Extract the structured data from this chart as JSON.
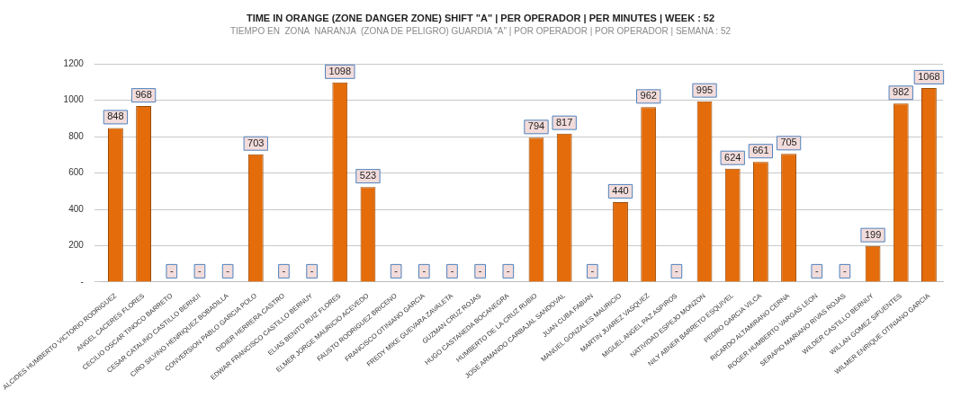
{
  "chart_data": {
    "type": "bar",
    "title": "TIME IN ORANGE (ZONE DANGER ZONE) SHIFT \"A\" | PER OPERADOR | PER MINUTES | WEEK : 52",
    "subtitle": "TIEMPO EN  ZONA  NARANJA  (ZONA DE PELIGRO) GUARDIA \"A\" | POR OPERADOR | POR OPERADOR | SEMANA : 52",
    "categories": [
      "ALCIDES HUMBERTO VICTORIO RODRIGUEZ",
      "ANGEL CACERES FLORES",
      "CECILIO OSCAR TINOCO BARRETO",
      "CESAR CATALINO CASTILLO BERNUI",
      "CIRO SILVINO HENRIQUEZ BOBADILLA",
      "CONVERSION PABLO GARCIA POLO",
      "DIDIER HERRERA CASTRO",
      "EDWAR FRANCISCO CASTILLO BERNUY",
      "ELIAS BENITO RUIZ FLORES",
      "ELMER JORGE MAURICIO ACEVEDO",
      "FAUSTO RODRIGUEZ BRICENO",
      "FRANCISCO OTINIANO GARCIA",
      "FREDY MIKE GUEVARA ZAVALETA",
      "GUZMAN CRUZ ROJAS",
      "HUGO CASTANEDA BOCANEGRA",
      "HUMBERTO DE LA CRUZ RUBIO",
      "JOSE ARMANDO CARBAJAL SANDOVAL",
      "JUAN CUBA FABIAN",
      "MANUEL GONZALES MAURICIO",
      "MARTIN JUAREZ VASQUEZ",
      "MIGUEL ANGEL PAZ ASPIROS",
      "NATIVIDAD ESPEJO MONZON",
      "NILY ABNER BARRETO ESQUIVEL",
      "PEDRO GARCIA VILCA",
      "RICARDO ALTAMIRANO CERNA",
      "ROGER HUMBERTO VARGAS LEON",
      "SERAPIO MARIANO RIVAS ROJAS",
      "WILDER CASTILLO BERNUY",
      "WILLAN GOMEZ SIFUENTES",
      "WILMER ENRIQUE OTINIANO GARCIA"
    ],
    "values": [
      848,
      968,
      0,
      0,
      0,
      703,
      0,
      0,
      1098,
      523,
      0,
      0,
      0,
      0,
      0,
      794,
      817,
      0,
      440,
      962,
      0,
      995,
      624,
      661,
      705,
      0,
      0,
      199,
      982,
      1068
    ],
    "value_labels": [
      "848",
      "968",
      "-",
      "-",
      "-",
      "703",
      "-",
      "-",
      "1098",
      "523",
      "-",
      "-",
      "-",
      "-",
      "-",
      "794",
      "817",
      "-",
      "440",
      "962",
      "-",
      "995",
      "624",
      "661",
      "705",
      "-",
      "-",
      "199",
      "982",
      "1068"
    ],
    "color": "#e46c0a",
    "ylim": [
      0,
      1200
    ],
    "yticks": [
      {
        "value": 0,
        "label": "-"
      },
      200,
      400,
      600,
      800,
      1000,
      1200
    ],
    "grid": "y",
    "legend": false
  }
}
